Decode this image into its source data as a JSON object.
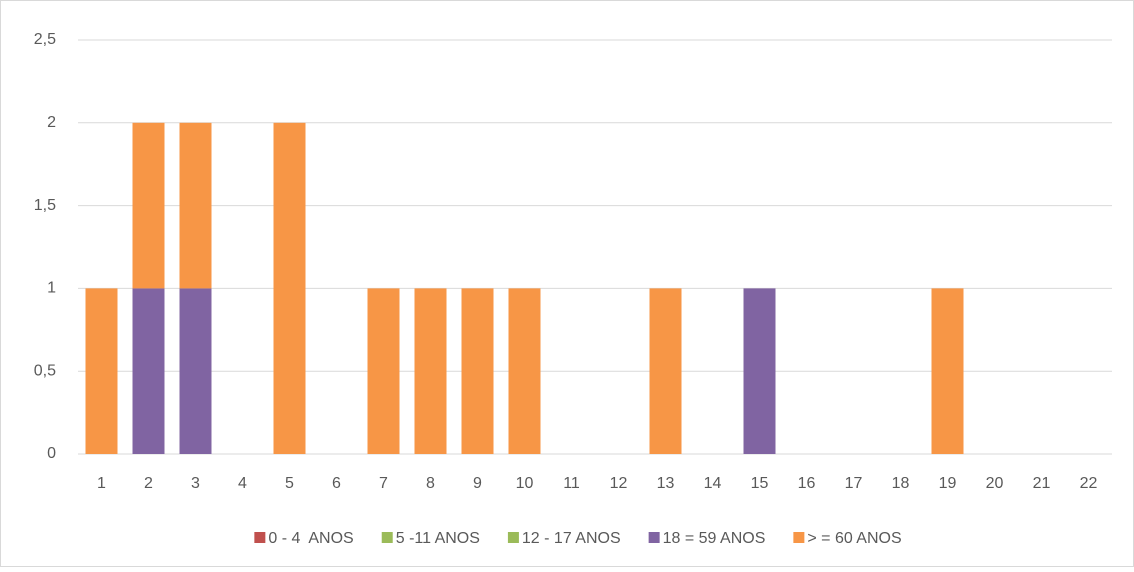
{
  "chart_data": {
    "type": "stacked_bar",
    "categories": [
      "1",
      "2",
      "3",
      "4",
      "5",
      "6",
      "7",
      "8",
      "9",
      "10",
      "11",
      "12",
      "13",
      "14",
      "15",
      "16",
      "17",
      "18",
      "19",
      "20",
      "21",
      "22"
    ],
    "series": [
      {
        "name": "0 - 4  ANOS",
        "color": "#c0504d",
        "values": [
          0,
          0,
          0,
          0,
          0,
          0,
          0,
          0,
          0,
          0,
          0,
          0,
          0,
          0,
          0,
          0,
          0,
          0,
          0,
          0,
          0,
          0
        ]
      },
      {
        "name": "5 -11 ANOS",
        "color": "#9bbb59",
        "values": [
          0,
          0,
          0,
          0,
          0,
          0,
          0,
          0,
          0,
          0,
          0,
          0,
          0,
          0,
          0,
          0,
          0,
          0,
          0,
          0,
          0,
          0
        ]
      },
      {
        "name": "12 - 17 ANOS",
        "color": "#9bbb59",
        "values": [
          0,
          0,
          0,
          0,
          0,
          0,
          0,
          0,
          0,
          0,
          0,
          0,
          0,
          0,
          0,
          0,
          0,
          0,
          0,
          0,
          0,
          0
        ]
      },
      {
        "name": "18 = 59 ANOS",
        "color": "#8064a2",
        "values": [
          0,
          1,
          1,
          0,
          0,
          0,
          0,
          0,
          0,
          0,
          0,
          0,
          0,
          0,
          1,
          0,
          0,
          0,
          0,
          0,
          0,
          0
        ]
      },
      {
        "name": "> = 60 ANOS",
        "color": "#f79646",
        "values": [
          1,
          1,
          1,
          0,
          2,
          0,
          1,
          1,
          1,
          1,
          0,
          0,
          1,
          0,
          0,
          0,
          0,
          0,
          1,
          0,
          0,
          0
        ]
      }
    ],
    "ylim": [
      0,
      2.5
    ],
    "yticks": [
      0,
      {
        "value": 0.5,
        "label": "0,5"
      },
      1,
      {
        "value": 1.5,
        "label": "1,5"
      },
      2,
      {
        "value": 2.5,
        "label": "2,5"
      }
    ],
    "grid": true,
    "legend": "bottom"
  }
}
